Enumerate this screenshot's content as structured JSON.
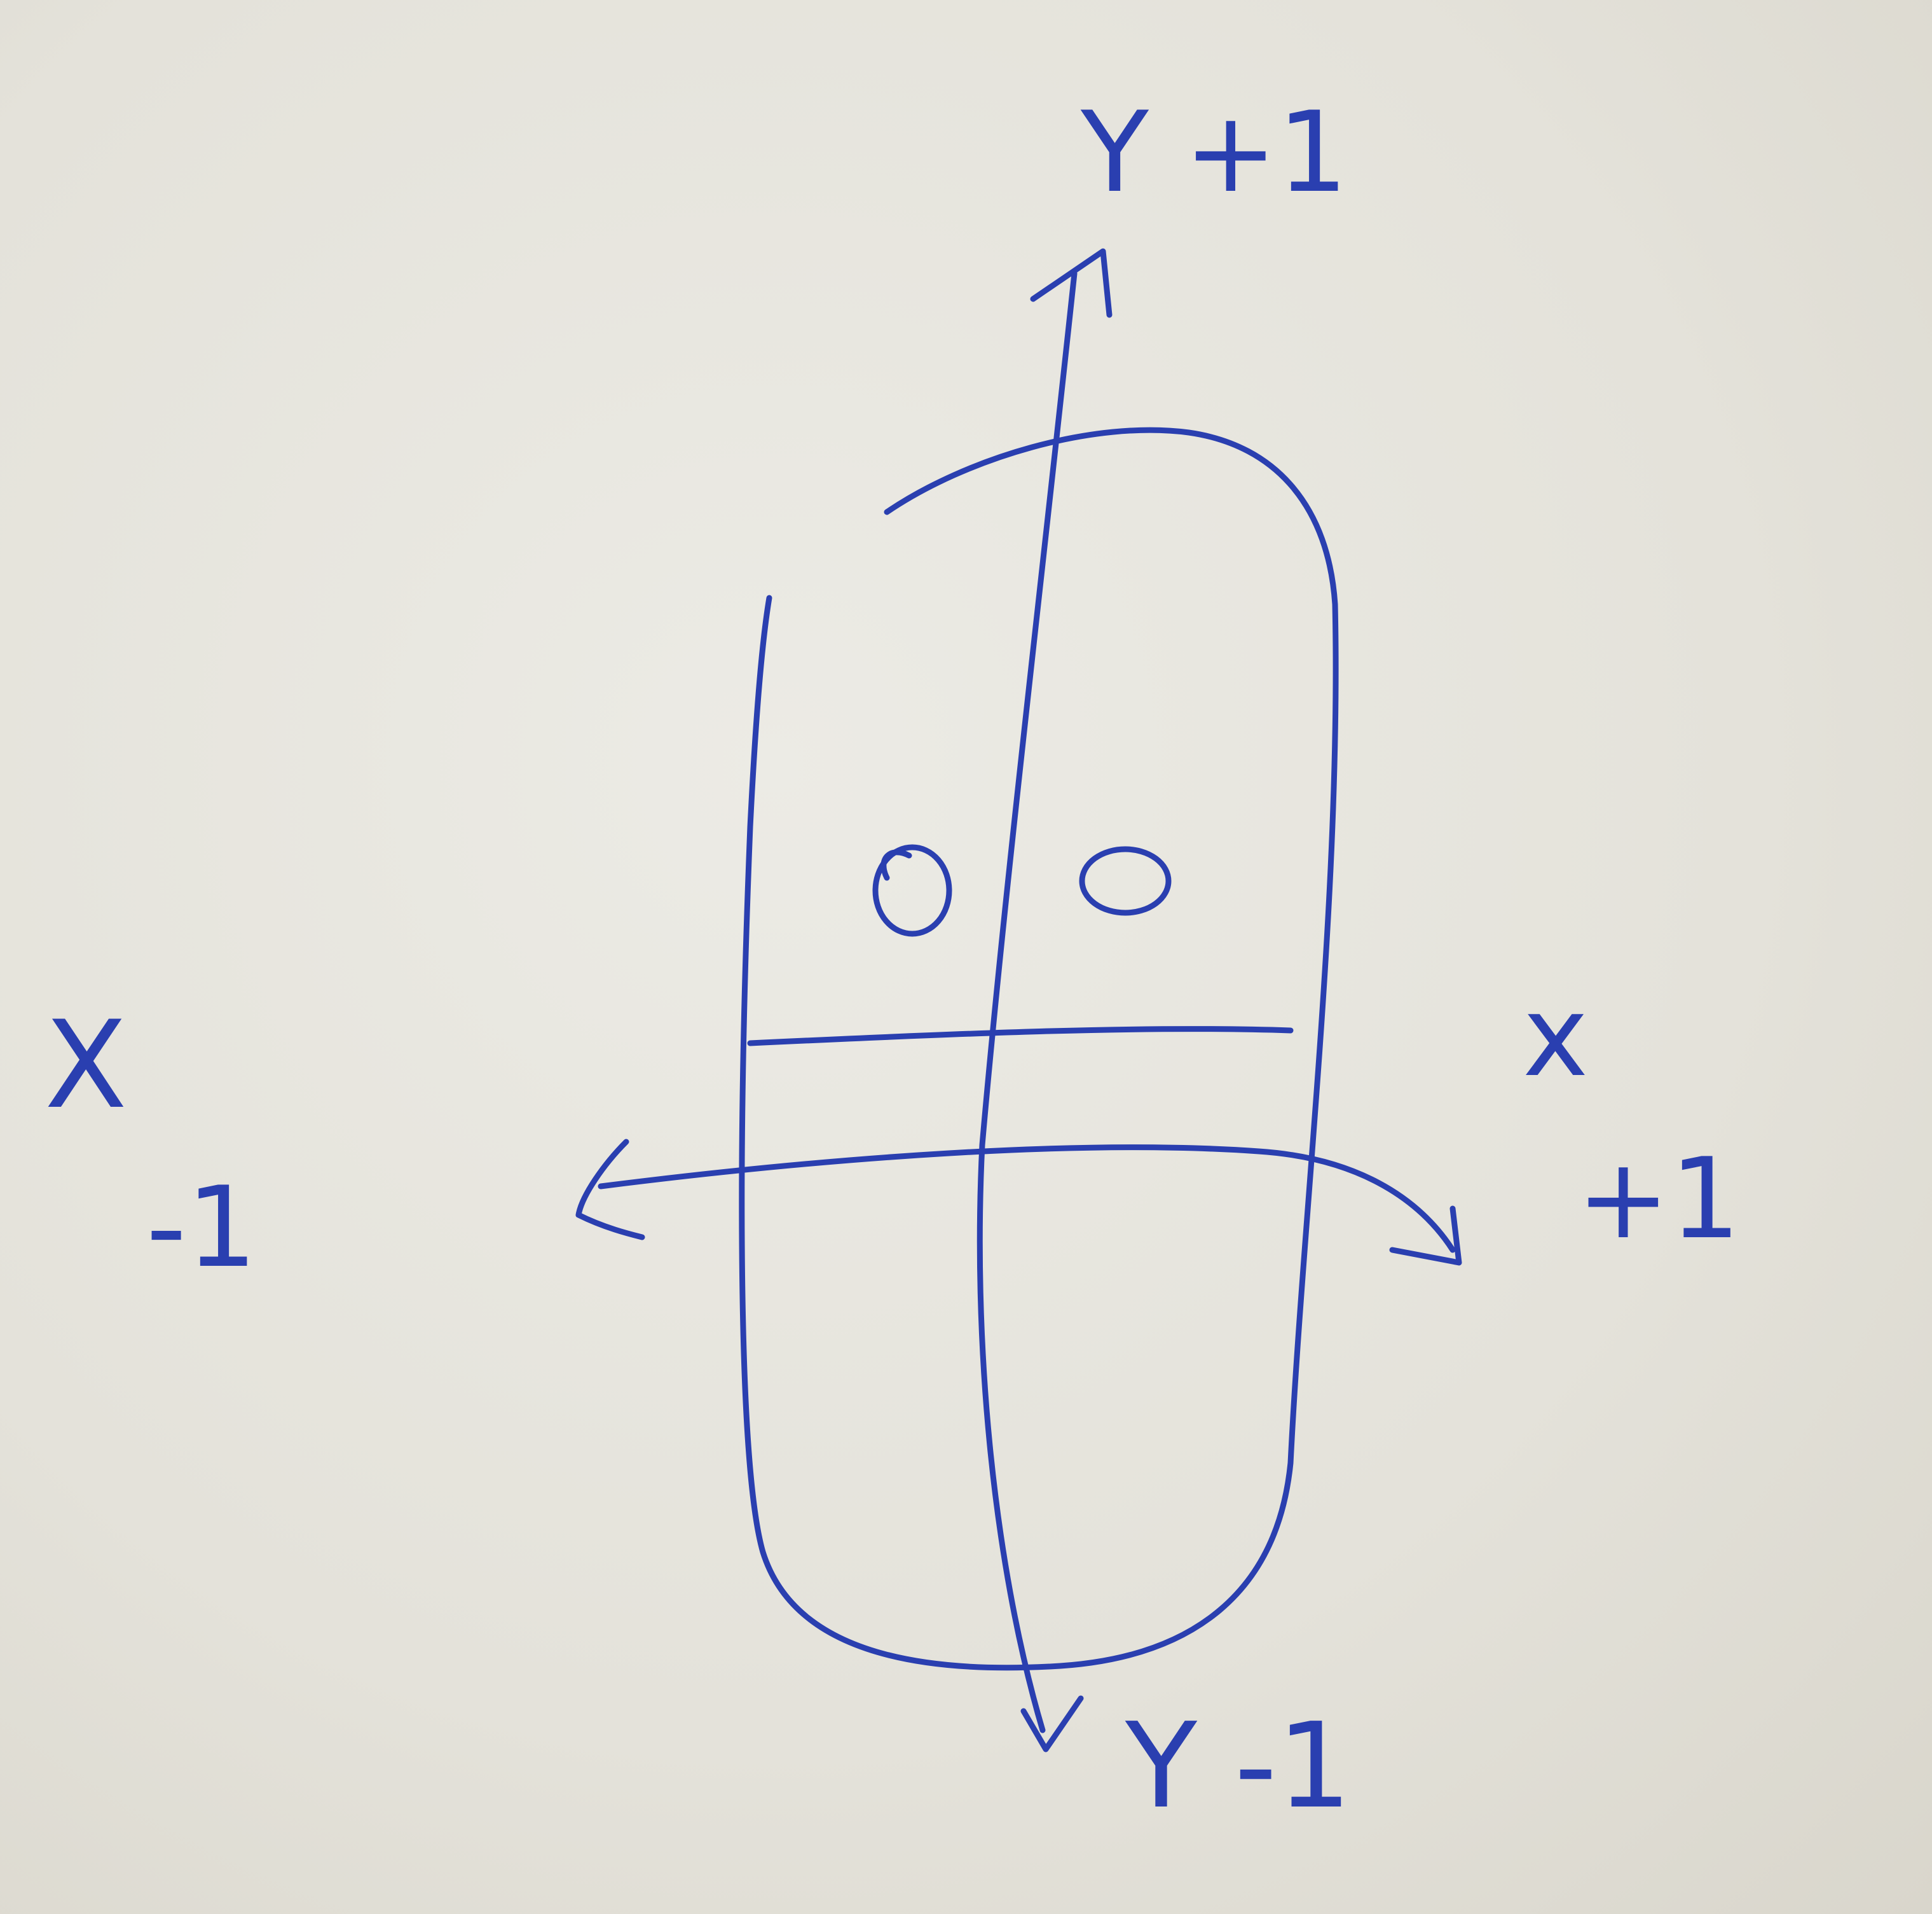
{
  "labels": {
    "y_top": "Y +1",
    "y_bottom": "Y -1",
    "x_left_letter": "X",
    "x_left_value": "-1",
    "x_right_letter": "x",
    "x_right_value": "+1"
  },
  "colors": {
    "ink": "#2a3fb0",
    "paper": "#e6e4dd"
  }
}
